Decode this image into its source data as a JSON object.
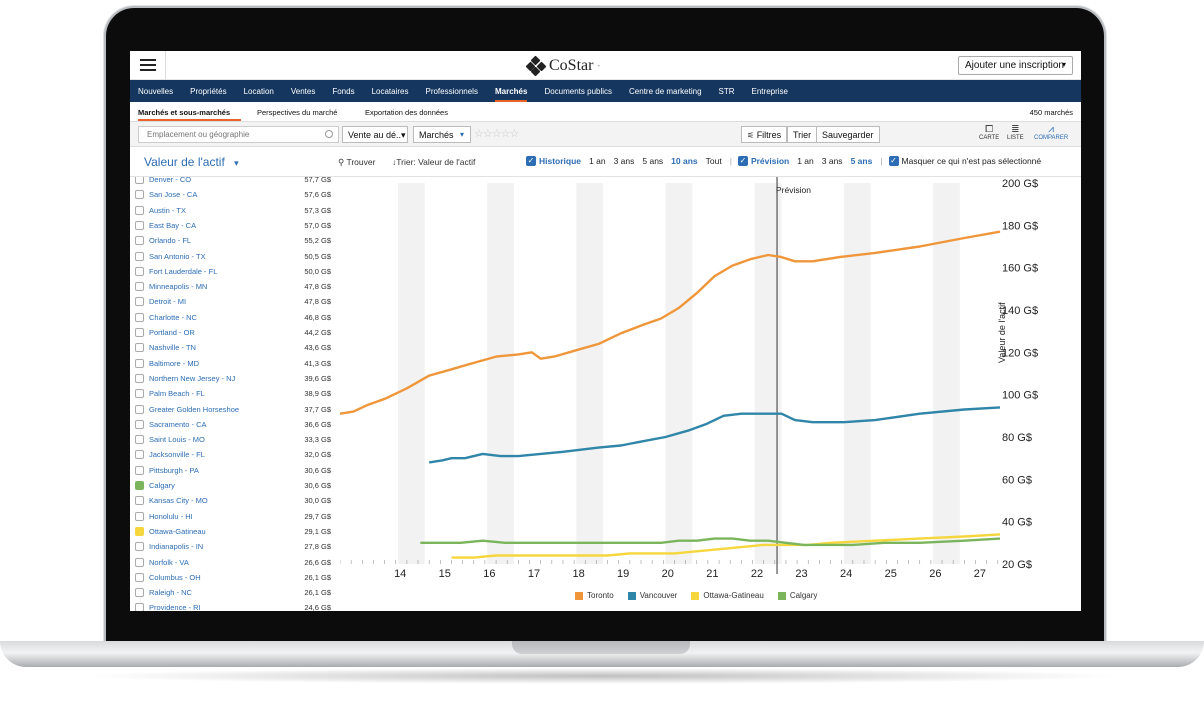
{
  "header": {
    "logo_text": "CoStar",
    "logo_tm": "-",
    "add_listing": "Ajouter une inscription",
    "add_listing_arrow": "▾"
  },
  "nav": [
    "Nouvelles",
    "Propriétés",
    "Location",
    "Ventes",
    "Fonds",
    "Locataires",
    "Professionnels",
    "Marchés",
    "Documents publics",
    "Centre de marketing",
    "STR",
    "Entreprise"
  ],
  "nav_active": "Marchés",
  "subnav": {
    "items": [
      "Marchés et sous-marchés",
      "Perspectives du marché",
      "Exportation des données"
    ],
    "count": "450 marchés"
  },
  "toolbar": {
    "search_placeholder": "Emplacement ou géographie",
    "sale_filter": "Vente au dé..▾",
    "markets_filter": "Marchés",
    "markets_arrow": "▾",
    "stars": "☆☆☆☆☆",
    "filters": "Filtres",
    "sort": "Trier",
    "save": "Sauvegarder",
    "views": [
      {
        "icon": "map-icon",
        "glyph": "⧠",
        "label": "CARTE"
      },
      {
        "icon": "list-icon",
        "glyph": "≣",
        "label": "LISTE"
      },
      {
        "icon": "compare-chart-icon",
        "glyph": "⩘",
        "label": "COMPARER"
      }
    ]
  },
  "controls": {
    "value_select": "Valeur de l'actif",
    "value_arrow": "▾",
    "find": "Trouver",
    "sort_by": "↓Trier:  Valeur de l'actif",
    "historic_label": "Historique",
    "historic_ranges": [
      "1 an",
      "3 ans",
      "5 ans",
      "10 ans",
      "Tout"
    ],
    "historic_selected": "10 ans",
    "forecast_label": "Prévision",
    "forecast_ranges": [
      "1 an",
      "3 ans",
      "5 ans"
    ],
    "forecast_selected": "5 ans",
    "hide_unselected": "Masquer ce qui n'est pas sélectionné"
  },
  "markets": [
    {
      "name": "Denver - CO",
      "value": "57,7 G$",
      "selected": false
    },
    {
      "name": "San Jose - CA",
      "value": "57,6 G$",
      "selected": false
    },
    {
      "name": "Austin - TX",
      "value": "57,3 G$",
      "selected": false
    },
    {
      "name": "East Bay - CA",
      "value": "57,0 G$",
      "selected": false
    },
    {
      "name": "Orlando - FL",
      "value": "55,2 G$",
      "selected": false
    },
    {
      "name": "San Antonio - TX",
      "value": "50,5 G$",
      "selected": false
    },
    {
      "name": "Fort Lauderdale - FL",
      "value": "50,0 G$",
      "selected": false
    },
    {
      "name": "Minneapolis - MN",
      "value": "47,8 G$",
      "selected": false
    },
    {
      "name": "Detroit - MI",
      "value": "47,8 G$",
      "selected": false
    },
    {
      "name": "Charlotte - NC",
      "value": "46,8 G$",
      "selected": false
    },
    {
      "name": "Portland - OR",
      "value": "44,2 G$",
      "selected": false
    },
    {
      "name": "Nashville - TN",
      "value": "43,6 G$",
      "selected": false
    },
    {
      "name": "Baltimore - MD",
      "value": "41,3 G$",
      "selected": false
    },
    {
      "name": "Northern New Jersey - NJ",
      "value": "39,6 G$",
      "selected": false
    },
    {
      "name": "Palm Beach - FL",
      "value": "38,9 G$",
      "selected": false
    },
    {
      "name": "Greater Golden Horseshoe",
      "value": "37,7 G$",
      "selected": false
    },
    {
      "name": "Sacramento - CA",
      "value": "36,6 G$",
      "selected": false
    },
    {
      "name": "Saint Louis - MO",
      "value": "33,3 G$",
      "selected": false
    },
    {
      "name": "Jacksonville - FL",
      "value": "32,0 G$",
      "selected": false
    },
    {
      "name": "Pittsburgh - PA",
      "value": "30,6 G$",
      "selected": false
    },
    {
      "name": "Calgary",
      "value": "30,6 G$",
      "selected": true,
      "color": "#7ab55c"
    },
    {
      "name": "Kansas City - MO",
      "value": "30,0 G$",
      "selected": false
    },
    {
      "name": "Honolulu - HI",
      "value": "29,7 G$",
      "selected": false
    },
    {
      "name": "Ottawa-Gatineau",
      "value": "29,1 G$",
      "selected": true,
      "color": "#f5d63d"
    },
    {
      "name": "Indianapolis - IN",
      "value": "27,8 G$",
      "selected": false
    },
    {
      "name": "Norfolk - VA",
      "value": "26,6 G$",
      "selected": false
    },
    {
      "name": "Columbus - OH",
      "value": "26,1 G$",
      "selected": false
    },
    {
      "name": "Raleigh - NC",
      "value": "26,1 G$",
      "selected": false
    },
    {
      "name": "Providence - RI",
      "value": "24,6 G$",
      "selected": false
    }
  ],
  "chart_data": {
    "type": "line",
    "forecast_label": "Prévision",
    "forecast_start": 22.8,
    "xlim": [
      13.0,
      27.8
    ],
    "ylim": [
      20,
      200
    ],
    "x_ticks": [
      "14",
      "15",
      "16",
      "17",
      "18",
      "19",
      "20",
      "21",
      "22",
      "23",
      "24",
      "25",
      "26",
      "27"
    ],
    "y_ticks": [
      "20 G$",
      "40 G$",
      "60 G$",
      "80 G$",
      "100 G$",
      "120 G$",
      "140 G$",
      "160 G$",
      "180 G$",
      "200 G$"
    ],
    "ylabel": "Valeur de l'actif",
    "legend_position": "bottom",
    "series": [
      {
        "name": "Toronto",
        "color": "#f0963a",
        "points": [
          [
            13.0,
            91
          ],
          [
            13.3,
            92
          ],
          [
            13.6,
            95
          ],
          [
            14.0,
            98
          ],
          [
            14.5,
            103
          ],
          [
            15.0,
            109
          ],
          [
            15.5,
            112
          ],
          [
            16.0,
            115
          ],
          [
            16.5,
            118
          ],
          [
            17.0,
            119
          ],
          [
            17.3,
            120
          ],
          [
            17.5,
            117
          ],
          [
            17.8,
            118
          ],
          [
            18.3,
            121
          ],
          [
            18.8,
            124
          ],
          [
            19.3,
            129
          ],
          [
            19.8,
            133
          ],
          [
            20.2,
            136
          ],
          [
            20.6,
            141
          ],
          [
            21.0,
            148
          ],
          [
            21.4,
            156
          ],
          [
            21.8,
            161
          ],
          [
            22.2,
            164
          ],
          [
            22.6,
            166
          ],
          [
            22.9,
            165
          ],
          [
            23.2,
            163
          ],
          [
            23.6,
            163
          ],
          [
            24.2,
            165
          ],
          [
            25.0,
            167
          ],
          [
            26.0,
            170
          ],
          [
            27.0,
            174
          ],
          [
            27.8,
            177
          ]
        ]
      },
      {
        "name": "Vancouver",
        "color": "#2f86a8",
        "points": [
          [
            15.0,
            68
          ],
          [
            15.3,
            69
          ],
          [
            15.5,
            70
          ],
          [
            15.8,
            70
          ],
          [
            16.2,
            72
          ],
          [
            16.6,
            71
          ],
          [
            17.0,
            71
          ],
          [
            17.5,
            72
          ],
          [
            18.0,
            73
          ],
          [
            18.4,
            74
          ],
          [
            18.8,
            75
          ],
          [
            19.3,
            76
          ],
          [
            19.8,
            78
          ],
          [
            20.3,
            80
          ],
          [
            20.8,
            83
          ],
          [
            21.2,
            86
          ],
          [
            21.6,
            90
          ],
          [
            22.0,
            91
          ],
          [
            22.5,
            91
          ],
          [
            22.9,
            91
          ],
          [
            23.2,
            88
          ],
          [
            23.6,
            87
          ],
          [
            24.3,
            87
          ],
          [
            25.0,
            88
          ],
          [
            26.0,
            91
          ],
          [
            27.0,
            93
          ],
          [
            27.8,
            94
          ]
        ]
      },
      {
        "name": "Ottawa-Gatineau",
        "color": "#f5d63d",
        "points": [
          [
            15.5,
            23
          ],
          [
            16.0,
            23
          ],
          [
            16.5,
            24
          ],
          [
            17.0,
            24
          ],
          [
            17.5,
            24
          ],
          [
            18.0,
            24
          ],
          [
            18.5,
            24
          ],
          [
            19.0,
            24
          ],
          [
            19.5,
            25
          ],
          [
            20.0,
            25
          ],
          [
            20.5,
            25
          ],
          [
            21.0,
            26
          ],
          [
            21.5,
            27
          ],
          [
            22.0,
            28
          ],
          [
            22.5,
            29
          ],
          [
            23.0,
            29
          ],
          [
            23.5,
            29
          ],
          [
            24.0,
            30
          ],
          [
            25.0,
            31
          ],
          [
            26.0,
            32
          ],
          [
            27.0,
            33
          ],
          [
            27.8,
            34
          ]
        ]
      },
      {
        "name": "Calgary",
        "color": "#7ab55c",
        "points": [
          [
            14.8,
            30
          ],
          [
            15.2,
            30
          ],
          [
            15.7,
            30
          ],
          [
            16.2,
            31
          ],
          [
            16.7,
            30
          ],
          [
            17.2,
            30
          ],
          [
            17.7,
            30
          ],
          [
            18.2,
            30
          ],
          [
            18.7,
            30
          ],
          [
            19.2,
            30
          ],
          [
            19.7,
            30
          ],
          [
            20.2,
            30
          ],
          [
            20.6,
            31
          ],
          [
            21.0,
            31
          ],
          [
            21.4,
            32
          ],
          [
            21.8,
            32
          ],
          [
            22.2,
            31
          ],
          [
            22.6,
            31
          ],
          [
            23.0,
            30
          ],
          [
            23.4,
            29
          ],
          [
            23.8,
            29
          ],
          [
            24.5,
            29
          ],
          [
            25.2,
            30
          ],
          [
            26.0,
            30
          ],
          [
            27.0,
            31
          ],
          [
            27.8,
            32
          ]
        ]
      }
    ]
  }
}
